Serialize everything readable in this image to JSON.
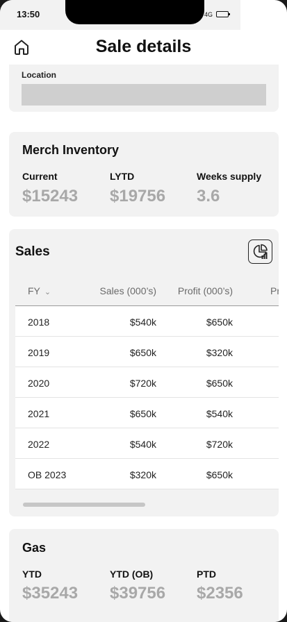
{
  "status_bar": {
    "time": "13:50",
    "network": "4G"
  },
  "header": {
    "title": "Sale details"
  },
  "location": {
    "label": "Location"
  },
  "merch_inventory": {
    "title": "Merch Inventory",
    "metrics": [
      {
        "label": "Current",
        "value": "$15243"
      },
      {
        "label": "LYTD",
        "value": "$19756"
      },
      {
        "label": "Weeks supply",
        "value": "3.6"
      }
    ]
  },
  "sales": {
    "title": "Sales",
    "columns": [
      "FY",
      "Sales (000’s)",
      "Profit (000’s)",
      "Pr"
    ],
    "rows": [
      {
        "fy": "2018",
        "sales": "$540k",
        "profit": "$650k"
      },
      {
        "fy": "2019",
        "sales": "$650k",
        "profit": "$320k"
      },
      {
        "fy": "2020",
        "sales": "$720k",
        "profit": "$650k"
      },
      {
        "fy": "2021",
        "sales": "$650k",
        "profit": "$540k"
      },
      {
        "fy": "2022",
        "sales": "$540k",
        "profit": "$720k"
      },
      {
        "fy": "OB 2023",
        "sales": "$320k",
        "profit": "$650k"
      }
    ]
  },
  "gas": {
    "title": "Gas",
    "metrics": [
      {
        "label": "YTD",
        "value": "$35243"
      },
      {
        "label": "YTD (OB)",
        "value": "$39756"
      },
      {
        "label": "PTD",
        "value": "$2356"
      }
    ]
  }
}
